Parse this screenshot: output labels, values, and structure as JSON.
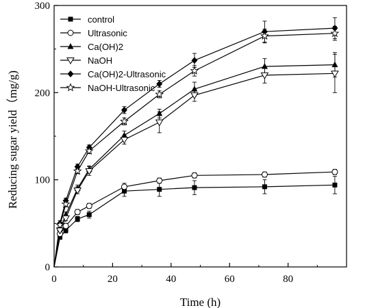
{
  "chart_data": {
    "type": "line",
    "xlabel": "Time (h)",
    "ylabel": "Reducing sugar yield（mg/g)",
    "xlim": [
      0,
      100
    ],
    "ylim": [
      0,
      300
    ],
    "xticks": [
      0,
      20,
      40,
      60,
      80
    ],
    "yticks": [
      0,
      100,
      200,
      300
    ],
    "legend_position": "top-left",
    "x": [
      0,
      2,
      4,
      8,
      12,
      24,
      36,
      48,
      72,
      96
    ],
    "series": [
      {
        "name": "control",
        "marker": "filled-square",
        "values": [
          0,
          34,
          42,
          55,
          60,
          87,
          89,
          91,
          92,
          94
        ],
        "errors": [
          0,
          2,
          3,
          3,
          4,
          6,
          8,
          8,
          8,
          10
        ]
      },
      {
        "name": "Ultrasonic",
        "marker": "open-circle",
        "values": [
          0,
          38,
          47,
          63,
          70,
          92,
          99,
          105,
          106,
          109
        ],
        "errors": [
          0,
          2,
          3,
          3,
          3,
          4,
          3,
          3,
          3,
          3
        ]
      },
      {
        "name": "Ca(OH)2",
        "marker": "filled-triangle-up",
        "values": [
          0,
          44,
          60,
          90,
          112,
          151,
          176,
          204,
          230,
          232
        ],
        "errors": [
          0,
          3,
          3,
          4,
          4,
          5,
          5,
          8,
          9,
          14
        ]
      },
      {
        "name": "NaOH",
        "marker": "open-triangle-down",
        "values": [
          0,
          42,
          56,
          88,
          110,
          146,
          166,
          197,
          220,
          222
        ],
        "errors": [
          0,
          3,
          3,
          4,
          5,
          5,
          12,
          7,
          9,
          22
        ]
      },
      {
        "name": "Ca(OH)2-Ultrasonic",
        "marker": "filled-diamond",
        "values": [
          0,
          50,
          76,
          115,
          137,
          180,
          210,
          237,
          270,
          274
        ],
        "errors": [
          0,
          3,
          3,
          3,
          3,
          4,
          4,
          8,
          12,
          12
        ]
      },
      {
        "name": "NaOH-Ultrasonic",
        "marker": "open-star",
        "values": [
          0,
          48,
          72,
          110,
          133,
          167,
          198,
          225,
          265,
          268
        ],
        "errors": [
          0,
          3,
          3,
          3,
          3,
          4,
          4,
          6,
          8,
          8
        ]
      }
    ]
  }
}
